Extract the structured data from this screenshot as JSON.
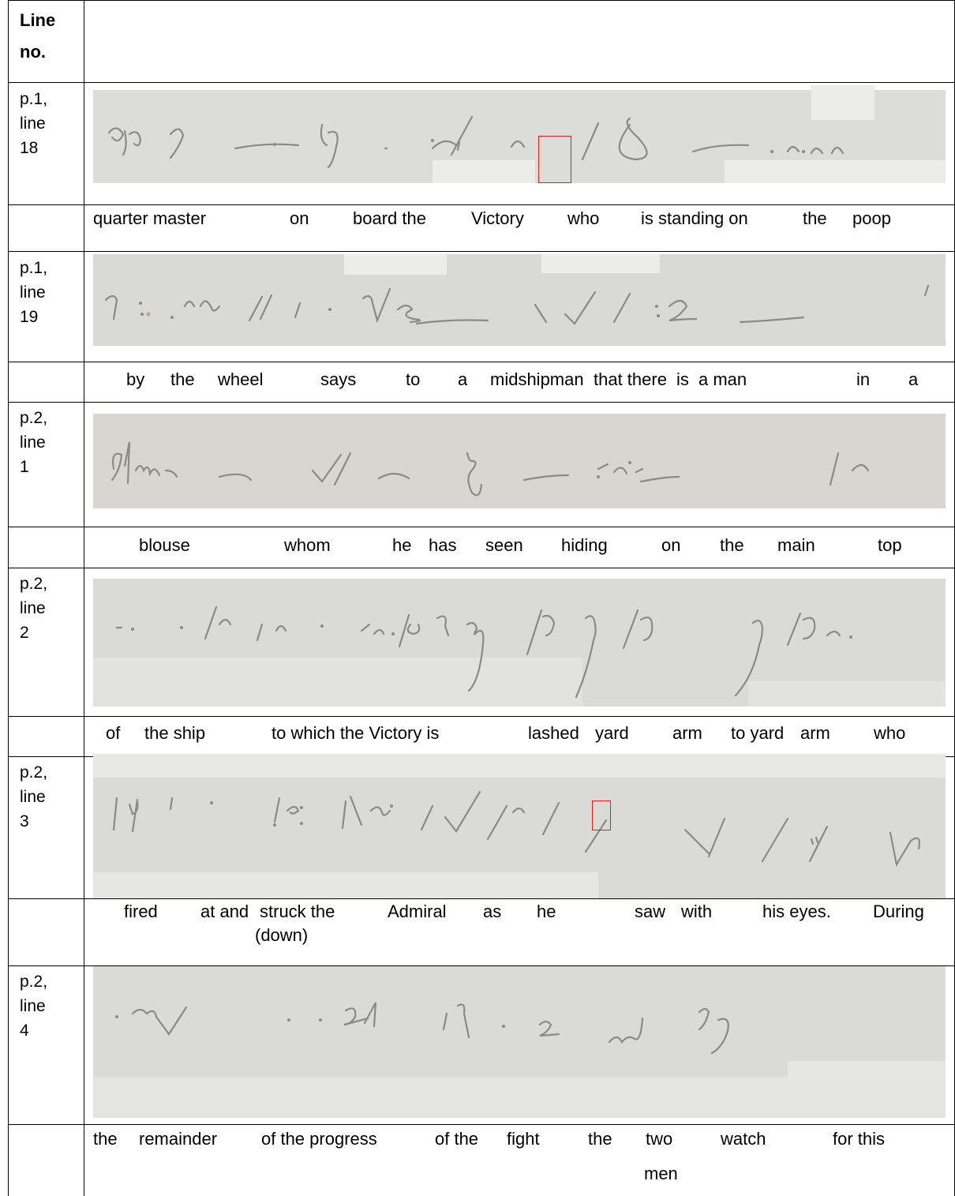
{
  "header": {
    "line_label_1": "Line",
    "line_label_2": "no."
  },
  "rows": [
    {
      "page": "p.1,",
      "word": "line",
      "num": "18",
      "translation": [
        "quarter master",
        "on",
        "board the",
        "Victory",
        "who",
        "is standing on",
        "the",
        "poop"
      ]
    },
    {
      "page": "p.1,",
      "word": "line",
      "num": "19",
      "translation": [
        "by",
        "the",
        "wheel",
        "says",
        "to",
        "a",
        "midshipman",
        "that there",
        "is",
        "a man",
        "in",
        "a"
      ]
    },
    {
      "page": "p.2,",
      "word": "line",
      "num": "1",
      "translation": [
        "blouse",
        "whom",
        "he",
        "has",
        "seen",
        "hiding",
        "on",
        "the",
        "main",
        "top"
      ]
    },
    {
      "page": "p.2,",
      "word": "line",
      "num": "2",
      "translation": [
        "of",
        "the ship",
        "to which the Victory is",
        "lashed",
        "yard",
        "arm",
        "to yard",
        "arm",
        "who"
      ]
    },
    {
      "page": "p.2,",
      "word": "line",
      "num": "3",
      "translation": [
        "fired",
        "at and",
        "struck the",
        "Admiral",
        "as",
        "he",
        "saw",
        "with",
        "his eyes.",
        "During"
      ],
      "translation_sub": "(down)"
    },
    {
      "page": "p.2,",
      "word": "line",
      "num": "4",
      "translation": [
        "the",
        "remainder",
        "of the progress",
        "of the",
        "fight",
        "the",
        "two",
        "watch",
        "for this"
      ],
      "translation_sub": "men"
    }
  ],
  "colors": {
    "rule": "#000000",
    "paper": "#dcdcd8",
    "pencil": "#8a8a86",
    "highlight_box": "#e0201a"
  }
}
